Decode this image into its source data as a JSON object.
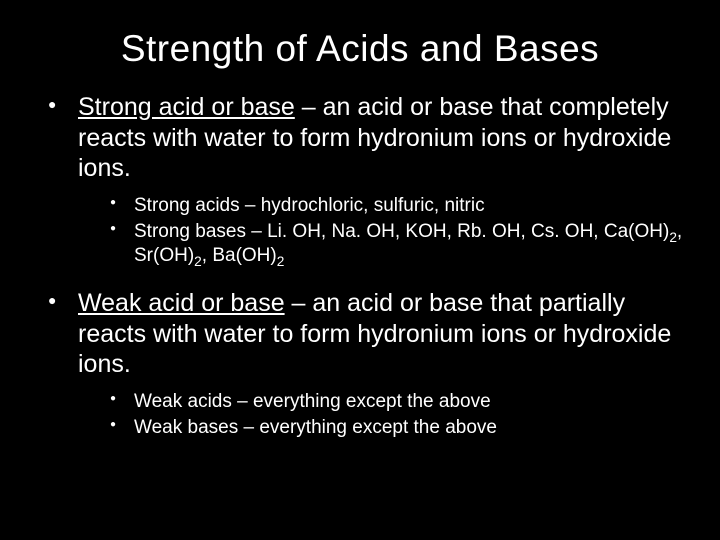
{
  "title": "Strength of Acids and Bases",
  "background_color": "#000000",
  "text_color": "#ffffff",
  "title_fontsize": 37,
  "body_fontsize": 25,
  "sub_fontsize": 19,
  "items": [
    {
      "term": "Strong acid or base",
      "definition": " – an acid or base that completely reacts with water to form hydronium ions or hydroxide ions.",
      "sub": [
        "Strong acids – hydrochloric, sulfuric, nitric",
        "Strong bases – Li. OH, Na. OH, KOH, Rb. OH, Cs. OH, Ca(OH)₂, Sr(OH)₂, Ba(OH)₂"
      ]
    },
    {
      "term": "Weak acid or base",
      "definition": " – an acid or base that partially reacts with water to form hydronium ions or hydroxide ions.",
      "sub": [
        "Weak acids – everything except the above",
        "Weak bases – everything except the above"
      ]
    }
  ]
}
